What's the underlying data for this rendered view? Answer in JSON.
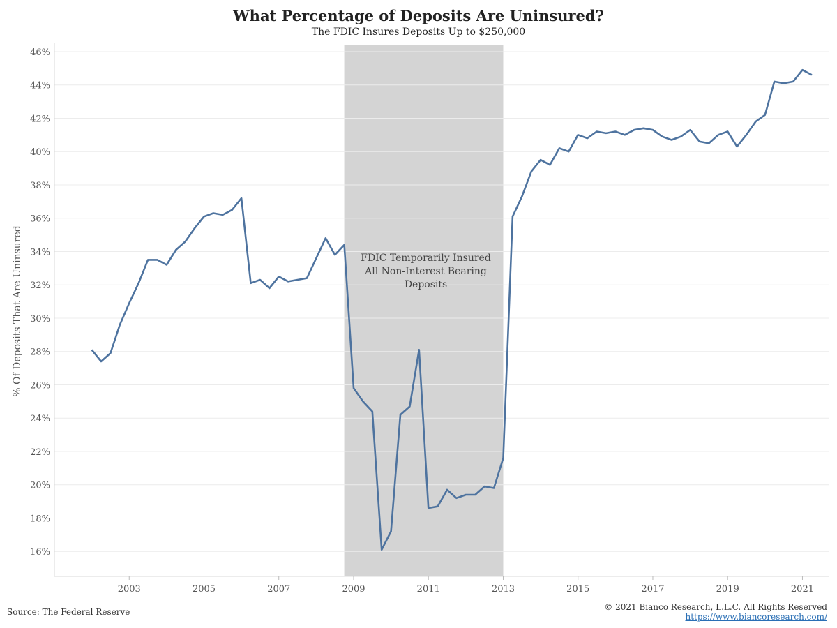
{
  "chart_data": {
    "type": "line",
    "title": "What Percentage of Deposits Are Uninsured?",
    "subtitle": "The FDIC Insures Deposits Up to $250,000",
    "ylabel": "% Of Deposits That Are Uninsured",
    "xlabel": "",
    "ylim": [
      14.5,
      46.5
    ],
    "xlim": [
      2001.0,
      2021.7
    ],
    "x_ticks": [
      2003,
      2005,
      2007,
      2009,
      2011,
      2013,
      2015,
      2017,
      2019,
      2021
    ],
    "y_ticks": [
      16,
      18,
      20,
      22,
      24,
      26,
      28,
      30,
      32,
      34,
      36,
      38,
      40,
      42,
      44,
      46
    ],
    "y_tick_labels": [
      "16%",
      "18%",
      "20%",
      "22%",
      "24%",
      "26%",
      "28%",
      "30%",
      "32%",
      "34%",
      "36%",
      "38%",
      "40%",
      "42%",
      "44%",
      "46%"
    ],
    "grid": true,
    "series": [
      {
        "color": "#4e739f",
        "x": [
          2002.0,
          2002.25,
          2002.5,
          2002.75,
          2003.0,
          2003.25,
          2003.5,
          2003.75,
          2004.0,
          2004.25,
          2004.5,
          2004.75,
          2005.0,
          2005.25,
          2005.5,
          2005.75,
          2006.0,
          2006.25,
          2006.5,
          2006.75,
          2007.0,
          2007.25,
          2007.5,
          2007.75,
          2008.0,
          2008.25,
          2008.5,
          2008.75,
          2009.0,
          2009.25,
          2009.5,
          2009.75,
          2010.0,
          2010.25,
          2010.5,
          2010.75,
          2011.0,
          2011.25,
          2011.5,
          2011.75,
          2012.0,
          2012.25,
          2012.5,
          2012.75,
          2013.0,
          2013.25,
          2013.5,
          2013.75,
          2014.0,
          2014.25,
          2014.5,
          2014.75,
          2015.0,
          2015.25,
          2015.5,
          2015.75,
          2016.0,
          2016.25,
          2016.5,
          2016.75,
          2017.0,
          2017.25,
          2017.5,
          2017.75,
          2018.0,
          2018.25,
          2018.5,
          2018.75,
          2019.0,
          2019.25,
          2019.5,
          2019.75,
          2020.0,
          2020.25,
          2020.5,
          2020.75,
          2021.0,
          2021.25
        ],
        "values": [
          28.1,
          27.4,
          27.9,
          29.6,
          30.9,
          32.1,
          33.5,
          33.5,
          33.2,
          34.1,
          34.6,
          35.4,
          36.1,
          36.3,
          36.2,
          36.5,
          37.2,
          32.1,
          32.3,
          31.8,
          32.5,
          32.2,
          32.3,
          32.4,
          33.6,
          34.8,
          33.8,
          34.4,
          25.8,
          25.0,
          24.4,
          16.1,
          17.2,
          24.2,
          24.7,
          28.1,
          18.6,
          18.7,
          19.7,
          19.2,
          19.4,
          19.4,
          19.9,
          19.8,
          21.6,
          36.1,
          37.3,
          38.8,
          39.5,
          39.2,
          40.2,
          40.0,
          41.0,
          40.8,
          41.2,
          41.1,
          41.2,
          41.0,
          41.3,
          41.4,
          41.3,
          40.9,
          40.7,
          40.9,
          41.3,
          40.6,
          40.5,
          41.0,
          41.2,
          40.3,
          41.0,
          41.8,
          42.2,
          44.2,
          44.1,
          44.2,
          44.9,
          44.6
        ]
      }
    ],
    "shaded_region": {
      "x_start": 2008.75,
      "x_end": 2013.0,
      "color": "#d4d4d4",
      "label_lines": [
        "FDIC Temporarily Insured",
        "All Non-Interest Bearing",
        "Deposits"
      ]
    }
  },
  "footer": {
    "source": "Source: The Federal Reserve",
    "copyright": "© 2021 Bianco Research, L.L.C. All Rights Reserved",
    "url": "https://www.biancoresearch.com/"
  }
}
